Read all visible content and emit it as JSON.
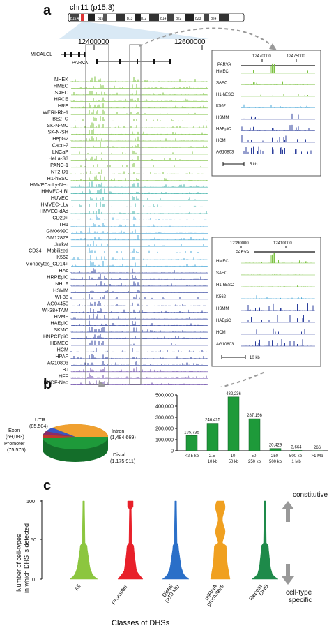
{
  "panel_a": {
    "letter": "a",
    "chrom_title": "chr11 (p15.3)",
    "ideogram_bands": [
      "p15.4",
      "p15",
      "p13",
      "q12",
      "q14",
      "q22",
      "q23",
      "q24"
    ],
    "coord_ticks": [
      "12400000",
      "12600000"
    ],
    "genes": [
      "MICALCL",
      "PARVA"
    ],
    "cell_types": [
      "NHEK",
      "HMEC",
      "SAEC",
      "HRCE",
      "HRE",
      "WERI-Rb-1",
      "BE2_C",
      "SK-N-MC",
      "SK-N-SH",
      "HepG2",
      "Caco-2",
      "LNCaP",
      "HeLa-S3",
      "PANC-1",
      "NT2-D1",
      "H1-hESC",
      "HMVEC-dLy-Neo",
      "HMVEC-LBl",
      "HUVEC",
      "HMVEC-LLy",
      "HMVEC-dAd",
      "CD20+",
      "TH1",
      "GM06990",
      "GM12878",
      "Jurkat",
      "CD34+_Mobilized",
      "K562",
      "Monocytes_CD14+",
      "HAc",
      "HRPEpiC",
      "NHLF",
      "HSMM",
      "WI-38",
      "AG04450",
      "WI-38+TAM",
      "HVMF",
      "HAEpiC",
      "SKMC",
      "HNPCEpiC",
      "HBMEC",
      "HCM",
      "HPAF",
      "AG10803",
      "BJ",
      "HFF",
      "NHDF-Neo"
    ],
    "inset_top": {
      "ticks": [
        "12470000",
        "12475000"
      ],
      "gene": "PARVA",
      "tracks": [
        "HMEC",
        "SAEC",
        "H1-hESC",
        "K562",
        "HSMM",
        "HAEpiC",
        "HCM",
        "AG10803"
      ],
      "scale": "5 kb"
    },
    "inset_bottom": {
      "ticks": [
        "12390000",
        "12410000"
      ],
      "gene": "PARVA",
      "tracks": [
        "HMEC",
        "SAEC",
        "H1-hESC",
        "K562",
        "HSMM",
        "HAEpiC",
        "HCM",
        "AG10803"
      ],
      "scale": "10 kb"
    },
    "colors": {
      "green": "#7cc242",
      "teal": "#3fb0a8",
      "sky": "#4aa8d8",
      "blue": "#2c3f9c",
      "purple": "#6a4aa8"
    }
  },
  "panel_b": {
    "letter": "b",
    "pie": [
      {
        "name": "UTR",
        "value": "(85,504)",
        "color": "#3a55c4"
      },
      {
        "name": "Exon",
        "value": "(69,083)",
        "color": "#8b2a6a"
      },
      {
        "name": "Promoter",
        "value": "(75,575)",
        "color": "#c0392b"
      },
      {
        "name": "Intron",
        "value": "(1,484,669)",
        "color": "#f0a030"
      },
      {
        "name": "Distal",
        "value": "(1,175,911)",
        "color": "#1e9a3a"
      }
    ],
    "chart_data": {
      "type": "bar",
      "categories": [
        "<2.5 kb",
        "2.5-\n10 kb",
        "10-\n50 kb",
        "50-\n250 kb",
        "250-\n500 kb",
        "500 kb-\n1 Mb",
        ">1 Mb"
      ],
      "values": [
        135735,
        246425,
        482236,
        287156,
        20429,
        3664,
        266
      ],
      "value_labels": [
        "135,735",
        "246,425",
        "482,236",
        "287,156",
        "20,429",
        "3,664",
        "266"
      ],
      "yticks": [
        "0",
        "100,000",
        "200,000",
        "300,000",
        "400,000",
        "500,000"
      ],
      "ylim": [
        0,
        500000
      ],
      "bar_color": "#1e9a3a"
    }
  },
  "panel_c": {
    "letter": "c",
    "ylabel": "Number of cell-types\nin which DHS is detected",
    "xlabel": "Classes of DHSs",
    "right_top": "constitutive",
    "right_bottom": "cell-type\nspecific",
    "yticks": [
      "0",
      "50",
      "100"
    ],
    "violins": [
      {
        "name": "All",
        "color": "#8cc63f"
      },
      {
        "name": "Promoter",
        "color": "#e8202a"
      },
      {
        "name": "Distal\n(>10 kb)",
        "color": "#2a6fc8"
      },
      {
        "name": "miRNA\npromoters",
        "color": "#f0a020"
      },
      {
        "name": "Repeat\nDHS",
        "color": "#1e8a4a"
      }
    ]
  }
}
